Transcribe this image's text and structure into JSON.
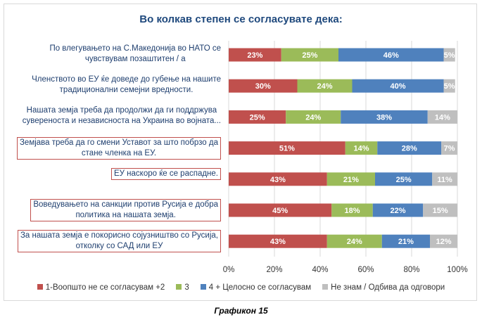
{
  "chart_data": {
    "type": "bar",
    "orientation": "horizontal",
    "stacked": true,
    "title": "Во колкав степен се согласувате дека:",
    "categories": [
      "По влегувањето на С.Македонија во НАТО се\nчувствувам позаштитен / а",
      "Членството во ЕУ ќе доведе до губење на нашите\nтрадиционални семејни вредности.",
      "Нашата земја треба да продолжи да ги поддржува\nсувереноста и независноста на Украина во војната...",
      "Земјава треба да го смени Уставот за што побрзо да\nстане членка на ЕУ.",
      "ЕУ наскоро ќе се распадне.",
      "Воведувањето на санкции против Русија е добра\nполитика на нашата земја.",
      "За нашата земја е покорисно сојузништво со Русија,\nотколку со САД или ЕУ"
    ],
    "highlighted": [
      false,
      false,
      false,
      true,
      true,
      true,
      true
    ],
    "series": [
      {
        "name": "1-Воопшто не се согласувам +2",
        "color": "#c0504d",
        "values": [
          23,
          30,
          25,
          51,
          43,
          45,
          43
        ]
      },
      {
        "name": "3",
        "color": "#9bbb59",
        "values": [
          25,
          24,
          24,
          14,
          21,
          18,
          24
        ]
      },
      {
        "name": "4 + Целосно се согласувам",
        "color": "#4f81bd",
        "values": [
          46,
          40,
          38,
          28,
          25,
          22,
          21
        ]
      },
      {
        "name": "Не знам / Одбива да одговори",
        "color": "#bfbfbf",
        "values": [
          5,
          5,
          14,
          7,
          11,
          15,
          12
        ]
      }
    ],
    "xlim": [
      0,
      100
    ],
    "xticks": [
      "0%",
      "20%",
      "40%",
      "60%",
      "80%",
      "100%"
    ],
    "grid": true,
    "legend_position": "bottom",
    "caption": "Графикон 15"
  }
}
